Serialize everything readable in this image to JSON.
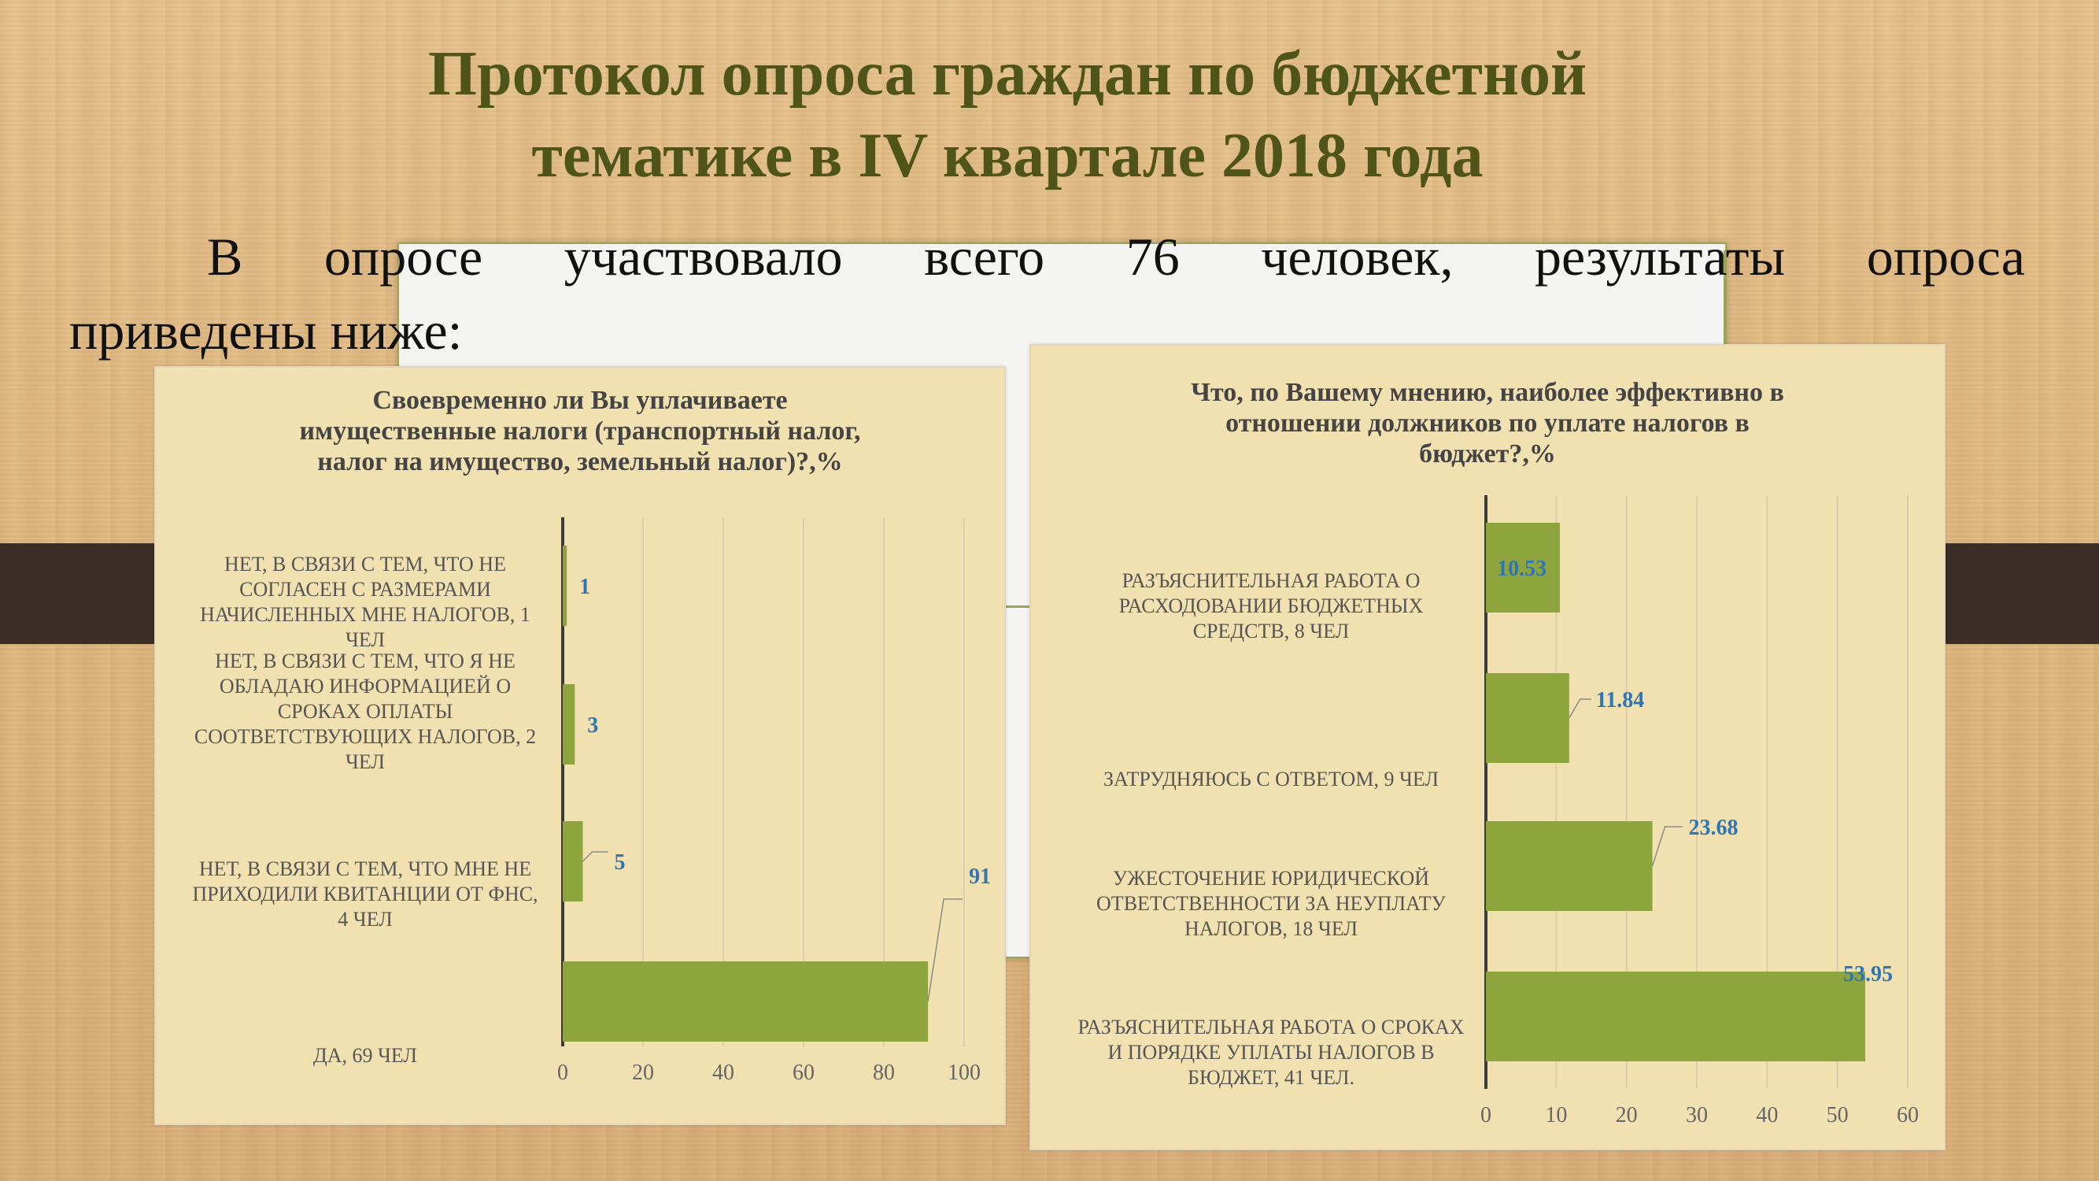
{
  "slide": {
    "title_line1": "Протокол опроса граждан по бюджетной",
    "title_line2": "тематике в IV квартале 2018 года",
    "intro_line1": "В опросе участвовало всего 76 человек, результаты опроса",
    "intro_line2": "приведены ниже:"
  },
  "colors": {
    "bar": "#8ea43c",
    "label": "#2e75b6",
    "title": "#4f5418",
    "panel": "#f1e0b0"
  },
  "chart_data": [
    {
      "type": "bar",
      "orientation": "horizontal",
      "title_lines": [
        "Своевременно ли Вы уплачиваете",
        "имущественные налоги (транспортный налог,",
        "налог на имущество, земельный налог)?,%"
      ],
      "categories": [
        [
          "НЕТ, В СВЯЗИ С ТЕМ, ЧТО НЕ",
          "СОГЛАСЕН С РАЗМЕРАМИ",
          "НАЧИСЛЕННЫХ МНЕ НАЛОГОВ, 1",
          "ЧЕЛ"
        ],
        [
          "НЕТ, В СВЯЗИ С ТЕМ, ЧТО Я НЕ",
          "ОБЛАДАЮ ИНФОРМАЦИЕЙ О",
          "СРОКАХ ОПЛАТЫ",
          "СООТВЕТСТВУЮЩИХ НАЛОГОВ, 2",
          "ЧЕЛ"
        ],
        [
          "НЕТ, В СВЯЗИ С ТЕМ, ЧТО МНЕ НЕ",
          "ПРИХОДИЛИ КВИТАНЦИИ ОТ ФНС,",
          "4 ЧЕЛ"
        ],
        [
          "ДА, 69 ЧЕЛ"
        ]
      ],
      "values": [
        1,
        3,
        5,
        91
      ],
      "value_labels": [
        "1",
        "3",
        "5",
        "91"
      ],
      "xlim": [
        0,
        100
      ],
      "xticks": [
        0,
        20,
        40,
        60,
        80,
        100
      ],
      "grid": true
    },
    {
      "type": "bar",
      "orientation": "horizontal",
      "title_lines": [
        "Что, по Вашему мнению, наиболее эффективно в",
        "отношении должников по уплате налогов в",
        "бюджет?,%"
      ],
      "categories": [
        [
          "РАЗЪЯСНИТЕЛЬНАЯ РАБОТА О",
          "РАСХОДОВАНИИ БЮДЖЕТНЫХ",
          "СРЕДСТВ, 8 ЧЕЛ"
        ],
        [
          "ЗАТРУДНЯЮСЬ С ОТВЕТОМ, 9 ЧЕЛ"
        ],
        [
          "УЖЕСТОЧЕНИЕ ЮРИДИЧЕСКОЙ",
          "ОТВЕТСТВЕННОСТИ ЗА НЕУПЛАТУ",
          "НАЛОГОВ, 18 ЧЕЛ"
        ],
        [
          "РАЗЪЯСНИТЕЛЬНАЯ РАБОТА О СРОКАХ",
          "И ПОРЯДКЕ УПЛАТЫ НАЛОГОВ В",
          "БЮДЖЕТ, 41 ЧЕЛ."
        ]
      ],
      "values": [
        10.53,
        11.84,
        23.68,
        53.95
      ],
      "value_labels": [
        "10.53",
        "11.84",
        "23.68",
        "53.95"
      ],
      "xlim": [
        0,
        60
      ],
      "xticks": [
        0,
        10,
        20,
        30,
        40,
        50,
        60
      ],
      "grid": true
    }
  ]
}
